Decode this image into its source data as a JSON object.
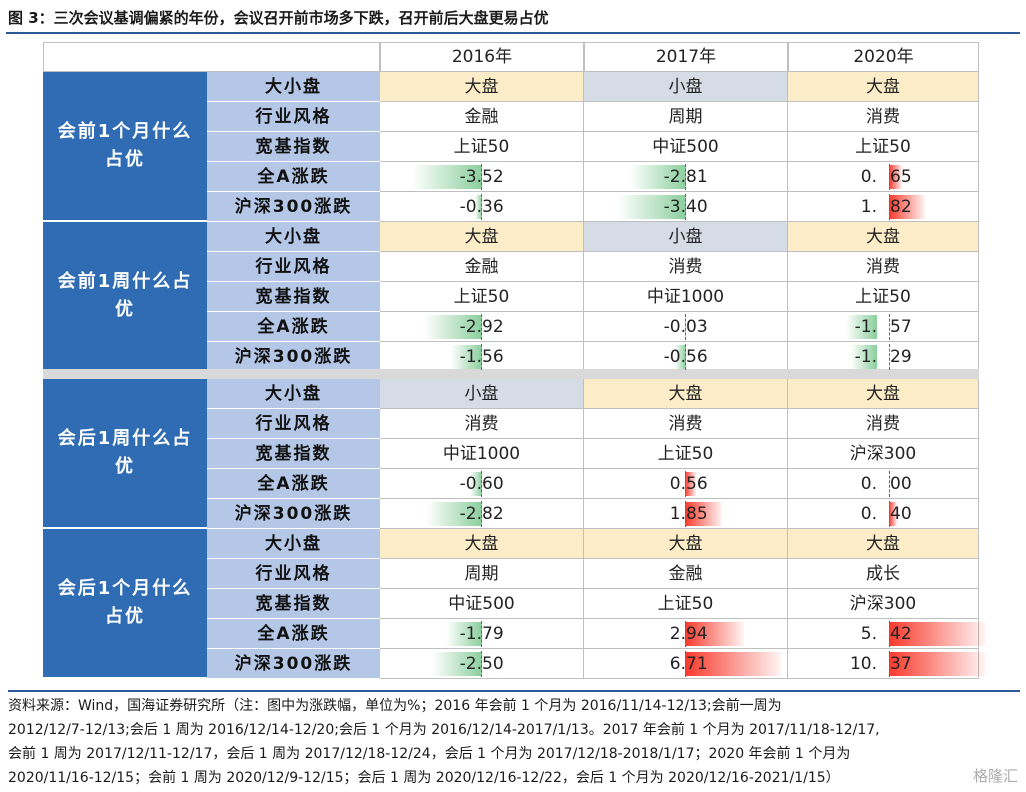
{
  "title": "图 3：三次会议基调偏紧的年份，会议召开前市场多下跌，召开前后大盘更易占优",
  "years": [
    "2016年",
    "2017年",
    "2020年"
  ],
  "colors": {
    "section_blue": "#2f6cb3",
    "label_blue": "#b4c7e7",
    "big_cap": "#fcecc8",
    "small_cap": "#d6dce5",
    "bar_red": "#f8392c",
    "bar_green": "#63be7b"
  },
  "sections": [
    {
      "label": "会前1个月什么占优",
      "rows": [
        {
          "label": "大小盘",
          "type": "cap",
          "values": [
            "大盘",
            "小盘",
            "大盘"
          ]
        },
        {
          "label": "行业风格",
          "type": "text",
          "values": [
            "金融",
            "周期",
            "消费"
          ]
        },
        {
          "label": "宽基指数",
          "type": "text",
          "values": [
            "上证50",
            "中证500",
            "上证50"
          ]
        },
        {
          "label": "全A涨跌",
          "type": "num",
          "values": [
            "-3.52",
            "-2.81",
            "0.65"
          ]
        },
        {
          "label": "沪深300涨跌",
          "type": "num",
          "values": [
            "-0.36",
            "-3.40",
            "1.82"
          ]
        }
      ]
    },
    {
      "label": "会前1周什么占优",
      "rows": [
        {
          "label": "大小盘",
          "type": "cap",
          "values": [
            "大盘",
            "小盘",
            "大盘"
          ]
        },
        {
          "label": "行业风格",
          "type": "text",
          "values": [
            "金融",
            "消费",
            "消费"
          ]
        },
        {
          "label": "宽基指数",
          "type": "text",
          "values": [
            "上证50",
            "中证1000",
            "上证50"
          ]
        },
        {
          "label": "全A涨跌",
          "type": "num",
          "values": [
            "-2.92",
            "-0.03",
            "-1.57"
          ]
        },
        {
          "label": "沪深300涨跌",
          "type": "num",
          "values": [
            "-1.56",
            "-0.56",
            "-1.29"
          ]
        }
      ]
    },
    {
      "label": "会后1周什么占优",
      "rows": [
        {
          "label": "大小盘",
          "type": "cap",
          "values": [
            "小盘",
            "大盘",
            "大盘"
          ]
        },
        {
          "label": "行业风格",
          "type": "text",
          "values": [
            "消费",
            "消费",
            "消费"
          ]
        },
        {
          "label": "宽基指数",
          "type": "text",
          "values": [
            "中证1000",
            "上证50",
            "沪深300"
          ]
        },
        {
          "label": "全A涨跌",
          "type": "num",
          "values": [
            "-0.60",
            "0.56",
            "0.00"
          ]
        },
        {
          "label": "沪深300涨跌",
          "type": "num",
          "values": [
            "-2.82",
            "1.85",
            "0.40"
          ]
        }
      ]
    },
    {
      "label": "会后1个月什么占优",
      "rows": [
        {
          "label": "大小盘",
          "type": "cap",
          "values": [
            "大盘",
            "大盘",
            "大盘"
          ]
        },
        {
          "label": "行业风格",
          "type": "text",
          "values": [
            "周期",
            "金融",
            "成长"
          ]
        },
        {
          "label": "宽基指数",
          "type": "text",
          "values": [
            "中证500",
            "上证50",
            "沪深300"
          ]
        },
        {
          "label": "全A涨跌",
          "type": "num",
          "values": [
            "-1.79",
            "2.94",
            "5.42"
          ]
        },
        {
          "label": "沪深300涨跌",
          "type": "num",
          "values": [
            "-2.50",
            "6.71",
            "10.37"
          ]
        }
      ]
    }
  ],
  "footer": {
    "line1": "资料来源：Wind，国海证券研究所（注：图中为涨跌幅，单位为%；2016 年会前 1 个月为 2016/11/14-12/13;会前一周为",
    "line2": "2012/12/7-12/13;会后 1 周为 2016/12/14-12/20;会后 1 个月为 2016/12/14-2017/1/13。2017 年会前 1 个月为 2017/11/18-12/17,",
    "line3": "会前 1 周为 2017/12/11-12/17，会后 1 周为 2017/12/18-12/24，会后 1 个月为 2017/12/18-2018/1/17；2020 年会前 1 个月为",
    "line4": "2020/11/16-12/15；会前 1 周为 2020/12/9-12/15；会后 1 周为 2020/12/16-12/22，会后 1 个月为 2020/12/16-2021/1/15）"
  },
  "watermark": "格隆汇"
}
